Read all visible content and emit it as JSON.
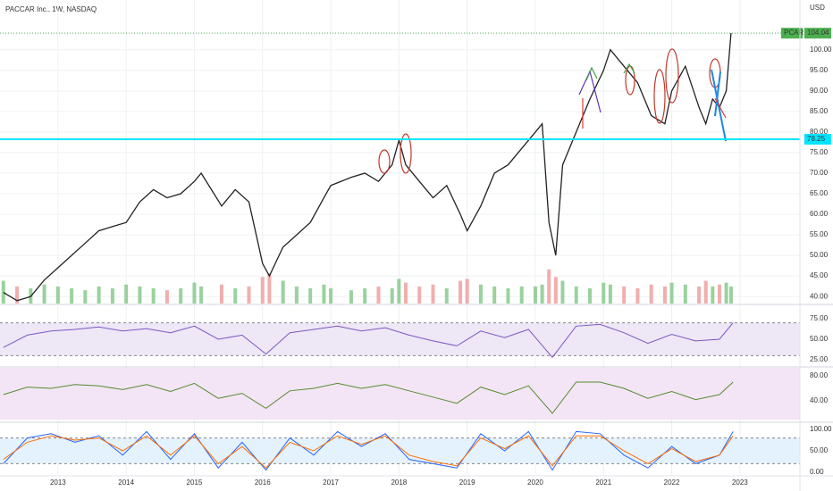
{
  "chart_data": [
    {
      "type": "line",
      "title": "PACCAR Inc., 1W, NASDAQ",
      "currency": "USD",
      "symbol": "PCAR",
      "x": [
        2012.2,
        2012.4,
        2012.6,
        2012.8,
        2013.0,
        2013.2,
        2013.4,
        2013.6,
        2013.8,
        2014.0,
        2014.2,
        2014.4,
        2014.6,
        2014.8,
        2015.0,
        2015.1,
        2015.4,
        2015.6,
        2015.8,
        2016.0,
        2016.1,
        2016.3,
        2016.5,
        2016.7,
        2016.9,
        2017.0,
        2017.3,
        2017.5,
        2017.7,
        2017.9,
        2018.0,
        2018.1,
        2018.3,
        2018.5,
        2018.7,
        2018.9,
        2019.0,
        2019.2,
        2019.4,
        2019.6,
        2019.8,
        2020.0,
        2020.1,
        2020.2,
        2020.3,
        2020.4,
        2020.6,
        2020.8,
        2021.0,
        2021.1,
        2021.3,
        2021.5,
        2021.7,
        2021.9,
        2022.0,
        2022.2,
        2022.4,
        2022.5,
        2022.6,
        2022.7,
        2022.8,
        2022.87
      ],
      "series": [
        {
          "name": "PCAR",
          "color": "#222222",
          "values": [
            41,
            39,
            40,
            44,
            47,
            50,
            53,
            56,
            57,
            58,
            63,
            66,
            64,
            65,
            68,
            70,
            62,
            66,
            63,
            48,
            45,
            52,
            55,
            58,
            64,
            67,
            69,
            70,
            68,
            72,
            78,
            72,
            68,
            64,
            67,
            60,
            56,
            62,
            70,
            72,
            76,
            80,
            82,
            58,
            50,
            72,
            80,
            88,
            95,
            100,
            96,
            92,
            84,
            82,
            90,
            96,
            86,
            82,
            88,
            86,
            90,
            104.04
          ]
        }
      ],
      "volume": [
        12,
        9,
        8,
        10,
        9,
        8,
        7,
        9,
        8,
        10,
        9,
        8,
        7,
        8,
        11,
        9,
        10,
        8,
        9,
        14,
        16,
        12,
        9,
        8,
        10,
        8,
        7,
        8,
        9,
        8,
        13,
        11,
        9,
        10,
        8,
        12,
        13,
        10,
        9,
        8,
        9,
        9,
        10,
        18,
        14,
        12,
        9,
        8,
        11,
        10,
        9,
        8,
        10,
        9,
        11,
        10,
        9,
        12,
        9,
        10,
        11,
        9
      ],
      "volume_lim": [
        0,
        40
      ],
      "up_color": "#81c784",
      "down_color": "#ef9a9a",
      "last_value": 104.04,
      "last_color": "#4caf50",
      "level": 78.25,
      "level_color": "#00e5ff",
      "xlim": [
        2012.15,
        2023.88
      ],
      "xticks": [
        2013,
        2014,
        2015,
        2016,
        2017,
        2018,
        2019,
        2020,
        2021,
        2022,
        2023
      ],
      "ylim": [
        38.3,
        112.1
      ],
      "yticks": [
        {
          "value": 40,
          "label": "40.00"
        },
        {
          "value": 45,
          "label": "45.00"
        },
        {
          "value": 50,
          "label": "50.00"
        },
        {
          "value": 55,
          "label": "55.00"
        },
        {
          "value": 60,
          "label": "60.00"
        },
        {
          "value": 65,
          "label": "65.00"
        },
        {
          "value": 70,
          "label": "70.00"
        },
        {
          "value": 75,
          "label": "75.00"
        },
        {
          "value": 80,
          "label": "80.00"
        },
        {
          "value": 85,
          "label": "85.00"
        },
        {
          "value": 90,
          "label": "90.00"
        },
        {
          "value": 95,
          "label": "95.00"
        },
        {
          "value": 100,
          "label": "100.00"
        }
      ],
      "grid": true
    },
    {
      "type": "line",
      "x": [
        2012.2,
        2012.55,
        2012.9,
        2013.25,
        2013.6,
        2013.95,
        2014.3,
        2014.65,
        2015.0,
        2015.35,
        2015.7,
        2016.05,
        2016.4,
        2016.75,
        2017.1,
        2017.45,
        2017.8,
        2018.15,
        2018.5,
        2018.85,
        2019.2,
        2019.55,
        2019.9,
        2020.25,
        2020.6,
        2020.95,
        2021.3,
        2021.65,
        2022.0,
        2022.35,
        2022.7,
        2022.9
      ],
      "series": [
        {
          "color": "#7e57c2",
          "values": [
            40,
            55,
            60,
            62,
            65,
            60,
            63,
            58,
            66,
            50,
            55,
            32,
            58,
            62,
            66,
            60,
            64,
            55,
            48,
            42,
            60,
            52,
            62,
            28,
            66,
            68,
            58,
            45,
            56,
            48,
            50,
            70
          ]
        }
      ],
      "ylim": [
        19.6,
        91.3
      ],
      "yticks": [
        {
          "value": 25,
          "label": "25.00"
        },
        {
          "value": 50,
          "label": "50.00"
        },
        {
          "value": 75,
          "label": "75.00"
        }
      ],
      "levels": [
        70,
        30
      ],
      "band_color": "#ede7f6"
    },
    {
      "type": "line",
      "x": [
        2012.2,
        2012.55,
        2012.9,
        2013.25,
        2013.6,
        2013.95,
        2014.3,
        2014.65,
        2015.0,
        2015.35,
        2015.7,
        2016.05,
        2016.4,
        2016.75,
        2017.1,
        2017.45,
        2017.8,
        2018.15,
        2018.5,
        2018.85,
        2019.2,
        2019.55,
        2019.9,
        2020.25,
        2020.6,
        2020.95,
        2021.3,
        2021.65,
        2022.0,
        2022.35,
        2022.7,
        2022.9
      ],
      "series": [
        {
          "color": "#558b2f",
          "values": [
            50,
            62,
            60,
            66,
            64,
            58,
            66,
            55,
            68,
            44,
            52,
            28,
            56,
            60,
            68,
            60,
            66,
            56,
            46,
            36,
            62,
            50,
            64,
            20,
            70,
            70,
            60,
            44,
            55,
            42,
            50,
            70
          ]
        }
      ],
      "ylim": [
        10,
        92.9
      ],
      "yticks": [
        {
          "value": 40,
          "label": "40.00"
        },
        {
          "value": 80,
          "label": "80.00"
        }
      ],
      "levels": [],
      "band_color": "#f3e5f5"
    },
    {
      "type": "line",
      "x": [
        2012.2,
        2012.55,
        2012.9,
        2013.25,
        2013.6,
        2013.95,
        2014.3,
        2014.65,
        2015.0,
        2015.35,
        2015.7,
        2016.05,
        2016.4,
        2016.75,
        2017.1,
        2017.45,
        2017.8,
        2018.15,
        2018.5,
        2018.85,
        2019.2,
        2019.55,
        2019.9,
        2020.25,
        2020.6,
        2020.95,
        2021.3,
        2021.65,
        2022.0,
        2022.35,
        2022.7,
        2022.9
      ],
      "series": [
        {
          "color": "#2962ff",
          "values": [
            20,
            80,
            90,
            70,
            85,
            40,
            95,
            30,
            90,
            10,
            70,
            5,
            80,
            40,
            95,
            60,
            90,
            30,
            20,
            10,
            90,
            50,
            95,
            5,
            95,
            90,
            40,
            10,
            60,
            20,
            40,
            95
          ]
        },
        {
          "color": "#ff6d00",
          "values": [
            30,
            70,
            85,
            75,
            80,
            50,
            85,
            40,
            85,
            20,
            60,
            10,
            70,
            50,
            85,
            65,
            85,
            40,
            25,
            15,
            80,
            55,
            85,
            15,
            85,
            85,
            50,
            20,
            55,
            25,
            40,
            85
          ]
        }
      ],
      "ylim": [
        -6.25,
        114.6
      ],
      "yticks": [
        {
          "value": 0,
          "label": "0.00"
        },
        {
          "value": 50,
          "label": "50.00"
        },
        {
          "value": 100,
          "label": "100.00"
        }
      ],
      "levels": [
        80,
        20
      ],
      "band_color": "#e3f2fd"
    }
  ]
}
